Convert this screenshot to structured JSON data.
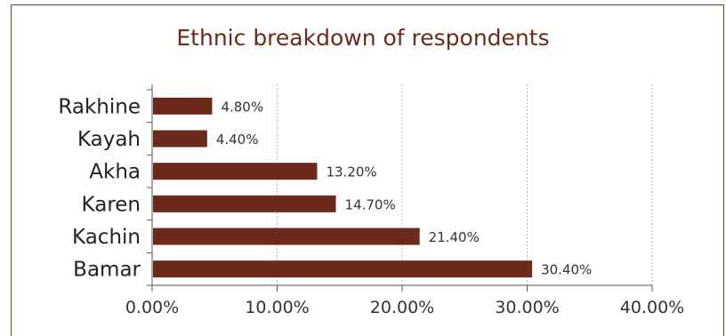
{
  "chart_data": {
    "type": "bar",
    "orientation": "horizontal",
    "title": "Ethnic breakdown of respondents",
    "categories": [
      "Rakhine",
      "Kayah",
      "Akha",
      "Karen",
      "Kachin",
      "Bamar"
    ],
    "values": [
      4.8,
      4.4,
      13.2,
      14.7,
      21.4,
      30.4
    ],
    "value_labels": [
      "4.80%",
      "4.40%",
      "13.20%",
      "14.70%",
      "21.40%",
      "30.40%"
    ],
    "xlim": [
      0,
      40
    ],
    "x_ticks": [
      0,
      10,
      20,
      30,
      40
    ],
    "x_tick_labels": [
      "0.00%",
      "10.00%",
      "20.00%",
      "30.00%",
      "40.00%"
    ],
    "grid": "vertical-dotted",
    "legend": "none",
    "bar_color": "#6b2a1b"
  }
}
